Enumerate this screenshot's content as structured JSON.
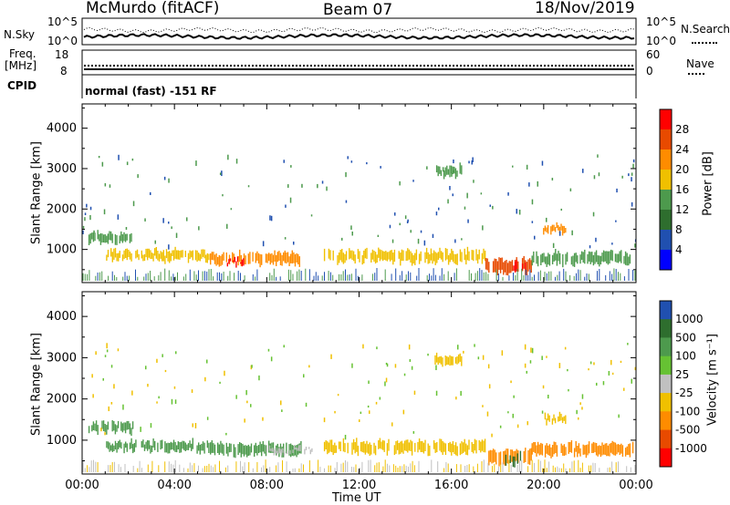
{
  "header": {
    "station": "McMurdo (fitACF)",
    "beam": "Beam 07",
    "date": "18/Nov/2019"
  },
  "strip": {
    "nsky_label": "N.Sky",
    "nsky_ticks": [
      "10^5",
      "10^0"
    ],
    "nsearch_label": "N.Search",
    "nsearch_ticks": [
      "10^5",
      "10^0"
    ],
    "freq_label": "Freq.",
    "freq_unit": "[MHz]",
    "freq_ticks": [
      "18",
      "8"
    ],
    "nave_label": "Nave",
    "nave_ticks": [
      "60",
      "0"
    ],
    "cpid_label": "CPID",
    "cpid_text": "normal (fast) -151 RF"
  },
  "chart_data": [
    {
      "type": "heatmap",
      "title": "",
      "xlabel": "Time UT",
      "ylabel": "Slant Range [km]",
      "x_ticks": [
        "00:00",
        "04:00",
        "08:00",
        "12:00",
        "16:00",
        "20:00",
        "00:00"
      ],
      "y_ticks": [
        1000,
        2000,
        3000,
        4000
      ],
      "ylim": [
        180,
        4600
      ],
      "xlim_hours": [
        0,
        24
      ],
      "colorbar": {
        "label": "Power [dB]",
        "ticks": [
          "28",
          "24",
          "20",
          "16",
          "12",
          "8",
          "4"
        ],
        "colors": [
          "#ff0000",
          "#e84a00",
          "#ff8c00",
          "#f0c000",
          "#4d9a4d",
          "#2e6e2e",
          "#2050b0",
          "#0000ff"
        ]
      },
      "echo_bands": [
        {
          "t0": 0.3,
          "t1": 2.2,
          "r0": 1150,
          "r1": 1450,
          "level": 12
        },
        {
          "t0": 1.0,
          "t1": 5.5,
          "r0": 700,
          "r1": 1000,
          "level": 16
        },
        {
          "t0": 5.5,
          "t1": 9.5,
          "r0": 600,
          "r1": 950,
          "level": 20
        },
        {
          "t0": 6.3,
          "t1": 7.0,
          "r0": 600,
          "r1": 800,
          "level": 28
        },
        {
          "t0": 10.5,
          "t1": 17.5,
          "r0": 650,
          "r1": 1000,
          "level": 16
        },
        {
          "t0": 17.5,
          "t1": 19.5,
          "r0": 400,
          "r1": 800,
          "level": 24
        },
        {
          "t0": 18.7,
          "t1": 19.3,
          "r0": 400,
          "r1": 700,
          "level": 28
        },
        {
          "t0": 19.5,
          "t1": 23.9,
          "r0": 600,
          "r1": 950,
          "level": 14
        },
        {
          "t0": 20.0,
          "t1": 21.0,
          "r0": 1400,
          "r1": 1650,
          "level": 20
        },
        {
          "t0": 15.3,
          "t1": 16.5,
          "r0": 2800,
          "r1": 3100,
          "level": 12
        }
      ]
    },
    {
      "type": "heatmap",
      "title": "",
      "xlabel": "Time UT",
      "ylabel": "Slant Range [km]",
      "x_ticks": [
        "00:00",
        "04:00",
        "08:00",
        "12:00",
        "16:00",
        "20:00",
        "00:00"
      ],
      "y_ticks": [
        1000,
        2000,
        3000,
        4000
      ],
      "ylim": [
        180,
        4600
      ],
      "xlim_hours": [
        0,
        24
      ],
      "colorbar": {
        "label": "Velocity [m s⁻¹]",
        "ticks": [
          "1000",
          "500",
          "100",
          "25",
          "-25",
          "-100",
          "-500",
          "-1000"
        ],
        "colors": [
          "#2050b0",
          "#2e6e2e",
          "#4d9a4d",
          "#66c233",
          "#c0c0c0",
          "#f0c000",
          "#ff8c00",
          "#e84a00",
          "#ff0000"
        ]
      },
      "echo_bands": [
        {
          "t0": 0.3,
          "t1": 2.2,
          "r0": 1150,
          "r1": 1450,
          "level": 100
        },
        {
          "t0": 1.0,
          "t1": 5.5,
          "r0": 700,
          "r1": 1000,
          "level": 100
        },
        {
          "t0": 5.5,
          "t1": 9.5,
          "r0": 600,
          "r1": 950,
          "level": 100
        },
        {
          "t0": 8.0,
          "t1": 10.0,
          "r0": 650,
          "r1": 850,
          "level": 0
        },
        {
          "t0": 10.5,
          "t1": 17.5,
          "r0": 650,
          "r1": 1000,
          "level": -100
        },
        {
          "t0": 17.5,
          "t1": 19.5,
          "r0": 400,
          "r1": 800,
          "level": -500
        },
        {
          "t0": 18.3,
          "t1": 19.0,
          "r0": 400,
          "r1": 700,
          "level": 500
        },
        {
          "t0": 19.5,
          "t1": 23.9,
          "r0": 600,
          "r1": 950,
          "level": -500
        },
        {
          "t0": 20.0,
          "t1": 21.0,
          "r0": 1400,
          "r1": 1650,
          "level": -100
        },
        {
          "t0": 15.3,
          "t1": 16.5,
          "r0": 2800,
          "r1": 3100,
          "level": -100
        }
      ]
    }
  ]
}
